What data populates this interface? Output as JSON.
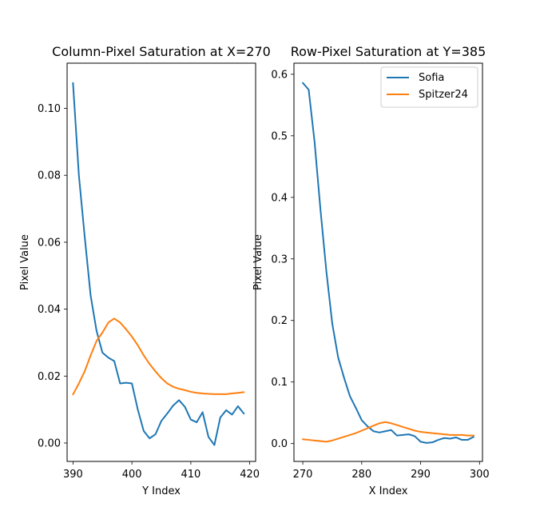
{
  "chart_data": [
    {
      "type": "line",
      "title": "Column-Pixel Saturation at X=270",
      "xlabel": "Y Index",
      "ylabel": "Pixel Value",
      "xlim": [
        389,
        421
      ],
      "ylim": [
        -0.0055,
        0.1135
      ],
      "xticks": [
        390,
        400,
        410,
        420
      ],
      "yticks": [
        0.0,
        0.02,
        0.04,
        0.06,
        0.08,
        0.1
      ],
      "ytick_format": 2,
      "grid": false,
      "legend": null,
      "series": [
        {
          "color": "#1f77b4",
          "x": [
            390,
            391,
            392,
            393,
            394,
            395,
            396,
            397,
            398,
            399,
            400,
            401,
            402,
            403,
            404,
            405,
            406,
            407,
            408,
            409,
            410,
            411,
            412,
            413,
            414,
            415,
            416,
            417,
            418,
            419
          ],
          "y": [
            0.1076,
            0.08,
            0.0614,
            0.044,
            0.0335,
            0.027,
            0.0255,
            0.0245,
            0.0178,
            0.018,
            0.0178,
            0.01,
            0.0036,
            0.0014,
            0.0026,
            0.0066,
            0.0088,
            0.0112,
            0.0128,
            0.0108,
            0.007,
            0.0062,
            0.0092,
            0.0018,
            -0.0006,
            0.0076,
            0.0098,
            0.0085,
            0.011,
            0.0088
          ]
        },
        {
          "color": "#ff7f0e",
          "x": [
            390,
            391,
            392,
            393,
            394,
            395,
            396,
            397,
            398,
            399,
            400,
            401,
            402,
            403,
            404,
            405,
            406,
            407,
            408,
            409,
            410,
            411,
            412,
            413,
            414,
            415,
            416,
            417,
            418,
            419
          ],
          "y": [
            0.0145,
            0.0178,
            0.0215,
            0.0262,
            0.0305,
            0.033,
            0.036,
            0.0372,
            0.036,
            0.034,
            0.0318,
            0.0292,
            0.0262,
            0.0236,
            0.0214,
            0.0194,
            0.0178,
            0.0168,
            0.0162,
            0.0158,
            0.0153,
            0.015,
            0.0148,
            0.0147,
            0.0146,
            0.0146,
            0.0146,
            0.0148,
            0.015,
            0.0152
          ]
        }
      ]
    },
    {
      "type": "line",
      "title": "Row-Pixel Saturation at Y=385",
      "xlabel": "X Index",
      "ylabel": "Pixel Value",
      "xlim": [
        268.5,
        300.5
      ],
      "ylim": [
        -0.029,
        0.618
      ],
      "xticks": [
        270,
        280,
        290,
        300
      ],
      "yticks": [
        0.0,
        0.1,
        0.2,
        0.3,
        0.4,
        0.5,
        0.6
      ],
      "ytick_format": 1,
      "grid": false,
      "legend": "top-right",
      "series": [
        {
          "name": "Sofia",
          "color": "#1f77b4",
          "x": [
            270,
            271,
            272,
            273,
            274,
            275,
            276,
            277,
            278,
            279,
            280,
            281,
            282,
            283,
            284,
            285,
            286,
            287,
            288,
            289,
            290,
            291,
            292,
            293,
            294,
            295,
            296,
            297,
            298,
            299
          ],
          "y": [
            0.586,
            0.575,
            0.49,
            0.38,
            0.28,
            0.195,
            0.14,
            0.107,
            0.077,
            0.058,
            0.038,
            0.028,
            0.02,
            0.018,
            0.02,
            0.022,
            0.013,
            0.014,
            0.015,
            0.012,
            0.003,
            0.001,
            0.002,
            0.006,
            0.009,
            0.008,
            0.01,
            0.006,
            0.006,
            0.011
          ]
        },
        {
          "name": "Spitzer24",
          "color": "#ff7f0e",
          "x": [
            270,
            271,
            272,
            273,
            274,
            275,
            276,
            277,
            278,
            279,
            280,
            281,
            282,
            283,
            284,
            285,
            286,
            287,
            288,
            289,
            290,
            291,
            292,
            293,
            294,
            295,
            296,
            297,
            298,
            299
          ],
          "y": [
            0.007,
            0.006,
            0.005,
            0.004,
            0.003,
            0.005,
            0.008,
            0.011,
            0.014,
            0.017,
            0.021,
            0.025,
            0.029,
            0.033,
            0.035,
            0.033,
            0.03,
            0.027,
            0.024,
            0.021,
            0.019,
            0.018,
            0.017,
            0.016,
            0.015,
            0.014,
            0.014,
            0.014,
            0.013,
            0.013
          ]
        }
      ]
    }
  ]
}
